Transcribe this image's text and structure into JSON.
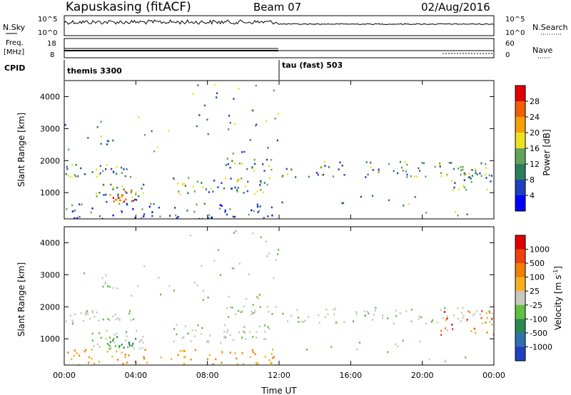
{
  "header": {
    "station": "Kapuskasing (fitACF)",
    "beam": "Beam 07",
    "date": "02/Aug/2016"
  },
  "strips": {
    "nsky": {
      "label": "N.Sky",
      "ticks": [
        "10^5",
        "10^0"
      ],
      "right_label": "N.Search",
      "right_ticks": [
        "10^5",
        "10^0"
      ]
    },
    "freq": {
      "label_line1": "Freq.",
      "label_line2": "[MHz]",
      "ticks": [
        "18",
        "8"
      ],
      "right_label": "Nave",
      "right_ticks": [
        "60",
        "0"
      ]
    },
    "cpid": {
      "label": "CPID",
      "segments": [
        {
          "name": "themis 3300",
          "start_hour": 0,
          "end_hour": 12
        },
        {
          "name": "tau (fast) 503",
          "start_hour": 12,
          "end_hour": 24
        }
      ]
    }
  },
  "chart_data": [
    {
      "type": "heatmap",
      "panel": "power",
      "ylabel": "Slant Range [km]",
      "xlabel": "",
      "xlim": [
        0,
        24
      ],
      "ylim": [
        180,
        4500
      ],
      "y_ticks": [
        "4000",
        "3000",
        "2000",
        "1000"
      ],
      "y_tick_values": [
        4000,
        3000,
        2000,
        1000
      ],
      "colorbar": {
        "label": "Power [dB]",
        "ticks": [
          "28",
          "24",
          "20",
          "16",
          "12",
          "8",
          "4"
        ],
        "colors": [
          "#0000ff",
          "#1e3fbf",
          "#2a7f5a",
          "#63a35a",
          "#f0e020",
          "#f8a000",
          "#f06000",
          "#e00000"
        ]
      }
    },
    {
      "type": "heatmap",
      "panel": "velocity",
      "ylabel": "Slant Range [km]",
      "xlabel": "Time UT",
      "xlim": [
        0,
        24
      ],
      "ylim": [
        180,
        4500
      ],
      "y_ticks": [
        "4000",
        "3000",
        "2000",
        "1000"
      ],
      "y_tick_values": [
        4000,
        3000,
        2000,
        1000
      ],
      "x_ticks": [
        "00:00",
        "04:00",
        "08:00",
        "12:00",
        "16:00",
        "20:00",
        "00:00"
      ],
      "x_tick_values": [
        0,
        4,
        8,
        12,
        16,
        20,
        24
      ],
      "colorbar": {
        "label": "Velocity [m s",
        "label_exp": "-1",
        "ticks": [
          "1000",
          "500",
          "100",
          "25",
          "-25",
          "-100",
          "-500",
          "-1000"
        ],
        "colors": [
          "#2040c0",
          "#3070b0",
          "#2a8a50",
          "#60c040",
          "#c8c8c0",
          "#f8b020",
          "#f08000",
          "#f04010",
          "#e00000"
        ]
      }
    }
  ]
}
